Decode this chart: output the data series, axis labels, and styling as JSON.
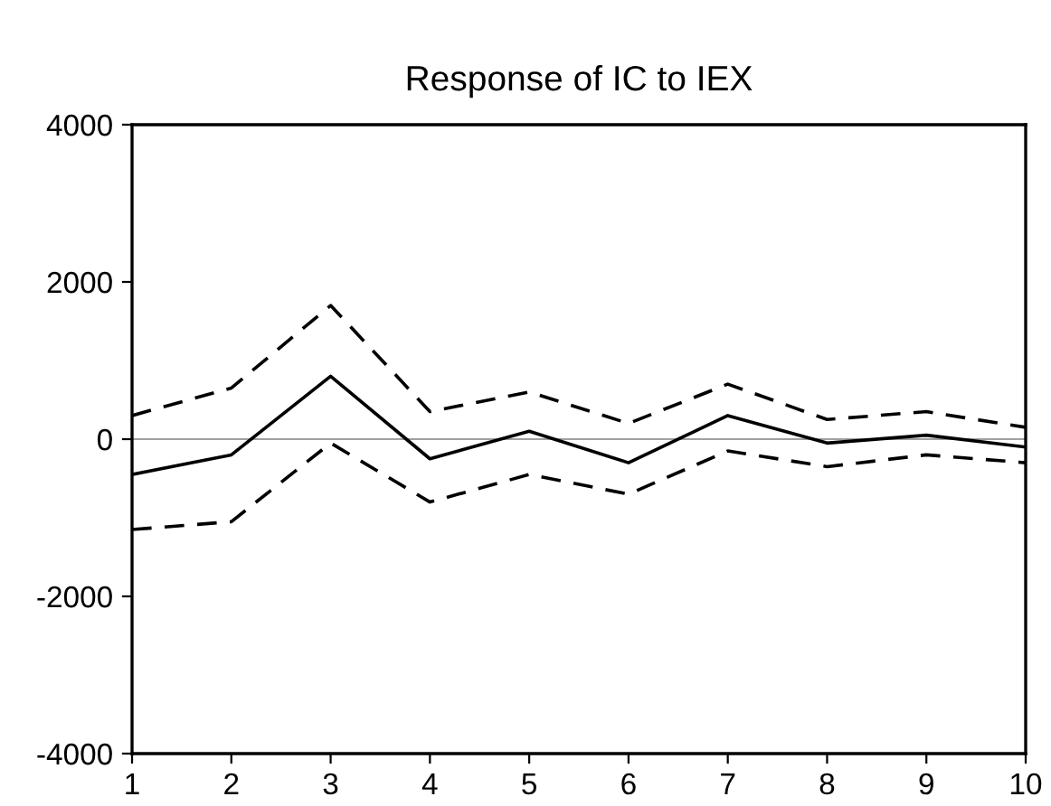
{
  "chart_data": {
    "type": "line",
    "title": "Response of IC to IEX",
    "x": [
      1,
      2,
      3,
      4,
      5,
      6,
      7,
      8,
      9,
      10
    ],
    "series": [
      {
        "color": "#000000",
        "line_style": "solid",
        "values": [
          -450,
          -200,
          800,
          -250,
          100,
          -300,
          300,
          -50,
          50,
          -100
        ]
      },
      {
        "color": "#000000",
        "line_style": "dashed",
        "values": [
          300,
          650,
          1700,
          350,
          600,
          200,
          700,
          250,
          350,
          150
        ]
      },
      {
        "color": "#000000",
        "line_style": "dashed",
        "values": [
          -1150,
          -1050,
          -50,
          -800,
          -450,
          -700,
          -150,
          -350,
          -200,
          -300
        ]
      }
    ],
    "xlim": [
      1,
      10
    ],
    "xticks": [
      1,
      2,
      3,
      4,
      5,
      6,
      7,
      8,
      9,
      10
    ],
    "ylim": [
      -4000,
      4000
    ],
    "yticks": [
      -4000,
      -2000,
      0,
      2000,
      4000
    ],
    "ref_lines": [
      {
        "axis": "y",
        "value": 0,
        "color": "#808080",
        "line_style": "solid"
      }
    ],
    "grid": false,
    "legend": false
  }
}
